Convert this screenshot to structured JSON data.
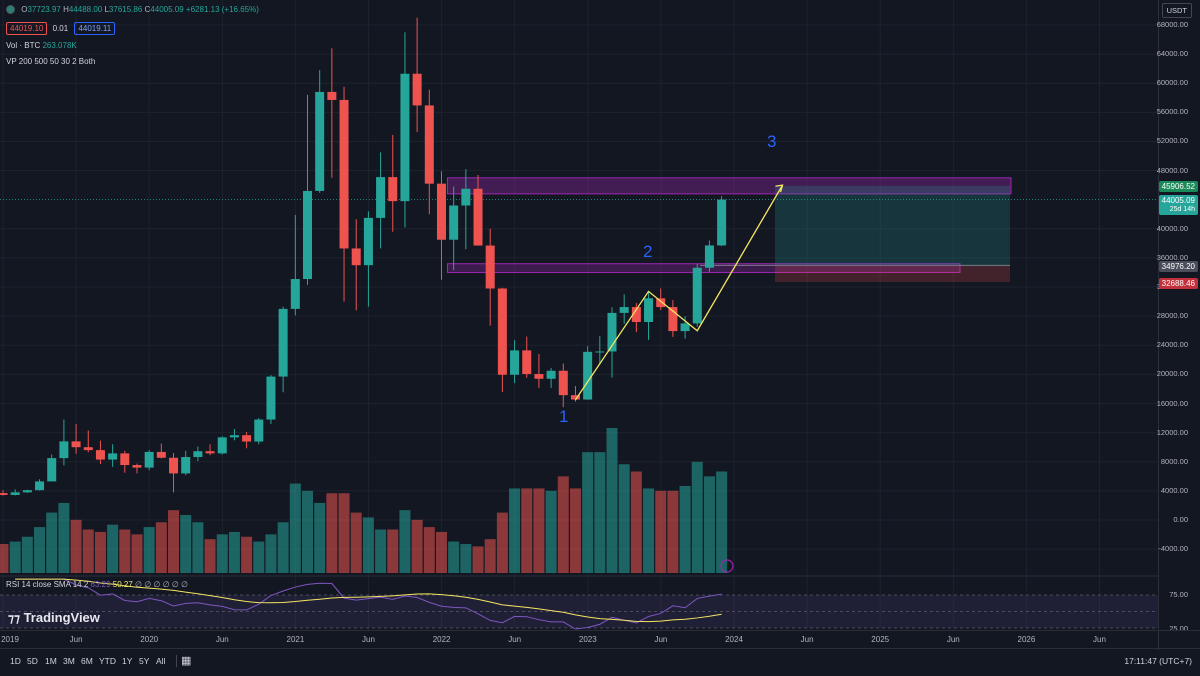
{
  "legend": {
    "ohlc": {
      "o_label": "O",
      "o": "37723.97",
      "h_label": "H",
      "h": "44488.00",
      "l_label": "L",
      "l": "37615.86",
      "c_label": "C",
      "c": "44005.09",
      "chg": "+6281.13 (+16.65%)"
    },
    "bid": "44019.10",
    "spread": "0.01",
    "ask": "44019.11",
    "volume": {
      "label": "Vol · BTC",
      "value": "263.078K"
    },
    "vp": "VP 200 500 50 30 2 Both",
    "rsi": {
      "label": "RSI 14 close SMA 14 2",
      "v1": "63.29",
      "v2": "50.27",
      "rest": "∅ ∅ ∅ ∅ ∅ ∅"
    }
  },
  "currency": "USDT",
  "price_axis": [
    "68000.00",
    "64000.00",
    "60000.00",
    "56000.00",
    "52000.00",
    "48000.00",
    "40000.00",
    "36000.00",
    "32000.00",
    "28000.00",
    "24000.00",
    "20000.00",
    "16000.00",
    "12000.00",
    "8000.00",
    "4000.00",
    "0.00",
    "-4000.00"
  ],
  "price_tags": [
    {
      "value": "45906.52",
      "color": "#1b8a5a"
    },
    {
      "value": "44005.09",
      "sub": "25d 14h",
      "color": "#26a69a"
    },
    {
      "value": "34976.20",
      "color": "#4a4e5a"
    },
    {
      "value": "32688.46",
      "color": "#c2303c"
    }
  ],
  "rsi_axis": [
    "75.00",
    "25.00"
  ],
  "time_axis": [
    "2019",
    "Jun",
    "2020",
    "Jun",
    "2021",
    "Jun",
    "2022",
    "Jun",
    "2023",
    "Jun",
    "2024",
    "Jun",
    "2025",
    "Jun",
    "2026",
    "Jun"
  ],
  "timeframes": [
    "1D",
    "5D",
    "1M",
    "3M",
    "6M",
    "YTD",
    "1Y",
    "5Y",
    "All"
  ],
  "clock": "17:11:47 (UTC+7)",
  "brand": "TradingView",
  "waves": [
    "1",
    "2",
    "3"
  ],
  "colors": {
    "up": "#26a69a",
    "down": "#ef5350",
    "zone": "#9c27b0",
    "path": "#f5e663",
    "wave": "#2962ff",
    "bg": "#131722"
  },
  "chart_data": {
    "type": "candlestick",
    "symbol": "BTC/USDT",
    "interval": "1M",
    "x": [
      "2019-01",
      "2019-02",
      "2019-03",
      "2019-04",
      "2019-05",
      "2019-06",
      "2019-07",
      "2019-08",
      "2019-09",
      "2019-10",
      "2019-11",
      "2019-12",
      "2020-01",
      "2020-02",
      "2020-03",
      "2020-04",
      "2020-05",
      "2020-06",
      "2020-07",
      "2020-08",
      "2020-09",
      "2020-10",
      "2020-11",
      "2020-12",
      "2021-01",
      "2021-02",
      "2021-03",
      "2021-04",
      "2021-05",
      "2021-06",
      "2021-07",
      "2021-08",
      "2021-09",
      "2021-10",
      "2021-11",
      "2021-12",
      "2022-01",
      "2022-02",
      "2022-03",
      "2022-04",
      "2022-05",
      "2022-06",
      "2022-07",
      "2022-08",
      "2022-09",
      "2022-10",
      "2022-11",
      "2022-12",
      "2023-01",
      "2023-02",
      "2023-03",
      "2023-04",
      "2023-05",
      "2023-06",
      "2023-07",
      "2023-08",
      "2023-09",
      "2023-10",
      "2023-11",
      "2023-12"
    ],
    "open": [
      3700,
      3440,
      3800,
      4100,
      5300,
      8500,
      10800,
      10000,
      9600,
      8300,
      9150,
      7550,
      7200,
      9350,
      8550,
      6400,
      8650,
      9450,
      9150,
      11350,
      11650,
      10780,
      13800,
      19700,
      29000,
      33100,
      45200,
      58800,
      57700,
      37300,
      35000,
      41500,
      47100,
      43800,
      61300,
      56950,
      46200,
      38500,
      43200,
      45500,
      37700,
      31800,
      19950,
      23300,
      20050,
      19400,
      20500,
      17150,
      16550,
      23100,
      23150,
      28450,
      29250,
      27200,
      30450,
      29250,
      25950,
      27000,
      34650,
      37720
    ],
    "high": [
      4100,
      4200,
      4150,
      5600,
      9000,
      13800,
      13200,
      12300,
      10900,
      10400,
      9500,
      7750,
      9600,
      10500,
      9200,
      9500,
      10100,
      10400,
      11500,
      12500,
      12100,
      14000,
      19900,
      29300,
      41900,
      58400,
      61800,
      64800,
      59500,
      41300,
      42400,
      50500,
      52900,
      67000,
      69000,
      59100,
      47900,
      45800,
      48200,
      47400,
      40000,
      31900,
      24700,
      25200,
      22800,
      20900,
      21500,
      18400,
      23900,
      25250,
      29200,
      31000,
      29800,
      31450,
      31800,
      30200,
      28000,
      35200,
      38400,
      44490
    ],
    "low": [
      3350,
      3380,
      3700,
      4050,
      5300,
      7500,
      9100,
      9300,
      7700,
      7300,
      6500,
      6400,
      6850,
      8450,
      3800,
      6150,
      8100,
      8900,
      9000,
      10950,
      9850,
      10400,
      13200,
      17550,
      28100,
      32300,
      44950,
      47000,
      30000,
      28800,
      29300,
      37300,
      39600,
      40200,
      53300,
      42000,
      33000,
      34300,
      37200,
      37700,
      26700,
      17600,
      18800,
      19550,
      18150,
      18150,
      15500,
      16250,
      16500,
      21350,
      19550,
      26950,
      25800,
      24750,
      28850,
      25150,
      24900,
      26550,
      34100,
      37615
    ],
    "close": [
      3440,
      3800,
      4100,
      5300,
      8500,
      10800,
      10000,
      9600,
      8300,
      9150,
      7550,
      7200,
      9350,
      8550,
      6400,
      8650,
      9450,
      9150,
      11350,
      11650,
      10780,
      13800,
      19700,
      29000,
      33100,
      45200,
      58800,
      57700,
      37300,
      35000,
      41500,
      47100,
      43800,
      61300,
      56950,
      46200,
      38500,
      43200,
      45500,
      37700,
      31800,
      19950,
      23300,
      20050,
      19400,
      20500,
      17150,
      16550,
      23100,
      23150,
      28450,
      29250,
      27200,
      30450,
      29250,
      25950,
      27000,
      34650,
      37720,
      44005
    ],
    "volume": [
      1200,
      1300,
      1500,
      1900,
      2500,
      2900,
      2200,
      1800,
      1700,
      2000,
      1800,
      1600,
      1900,
      2100,
      2600,
      2400,
      2100,
      1400,
      1600,
      1700,
      1500,
      1300,
      1600,
      2100,
      3700,
      3400,
      2900,
      3300,
      3300,
      2500,
      2300,
      1800,
      1800,
      2600,
      2200,
      1900,
      1700,
      1300,
      1200,
      1100,
      1400,
      2500,
      3500,
      3500,
      3500,
      3400,
      4000,
      3500,
      5000,
      5000,
      6000,
      4500,
      4200,
      3500,
      3400,
      3400,
      3600,
      4600,
      4000,
      4200
    ],
    "ylim": [
      -6000,
      70000
    ],
    "annotations": {
      "resistance_zone": [
        44800,
        47000
      ],
      "support_zone": [
        34000,
        35200
      ],
      "wave_path": [
        [
          "2022-12",
          16500
        ],
        [
          "2023-06",
          31400
        ],
        [
          "2023-10",
          26000
        ],
        [
          "2024-05",
          46000
        ]
      ],
      "wave_labels": [
        [
          "1",
          "2022-12",
          13000
        ],
        [
          "2",
          "2023-06",
          38000
        ],
        [
          "3",
          "2024-05",
          52000
        ]
      ],
      "target": 45906.52,
      "entry": 34976.2,
      "stop": 32688.46
    },
    "rsi": {
      "value": 63.29,
      "sma": 50.27,
      "ylim": [
        25,
        75
      ]
    }
  }
}
